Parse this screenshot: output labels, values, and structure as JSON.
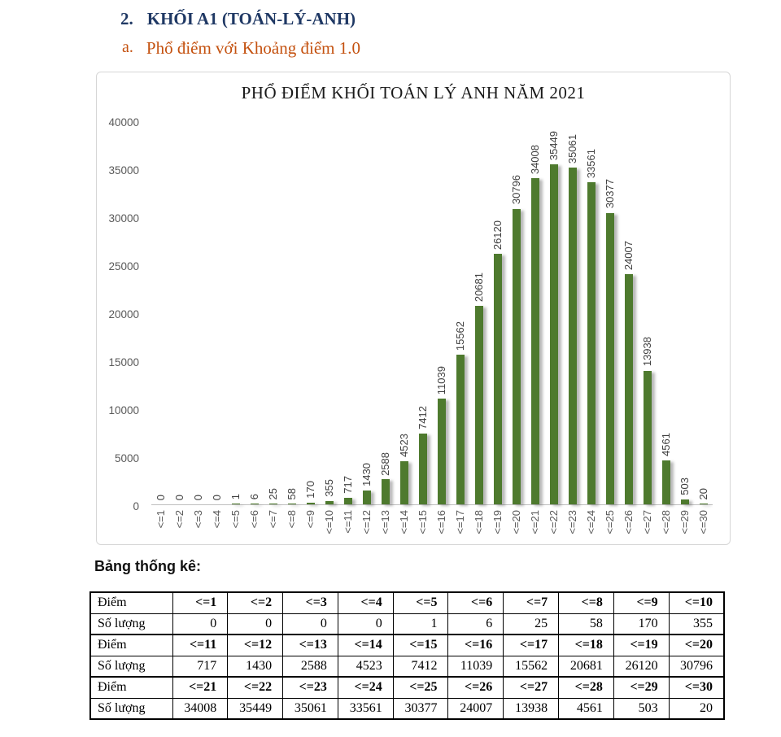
{
  "page": {
    "heading_number": "2.",
    "heading": "KHỐI A1 (TOÁN-LÝ-ANH)",
    "subheading_letter": "a.",
    "subheading": "Phổ điểm với Khoảng điểm 1.0",
    "stats_label": "Bảng thống kê:"
  },
  "colors": {
    "heading_navy": "#1f3864",
    "subheading_orange": "#c4510f",
    "bar_green": "#4e7a2e",
    "axis_text_gray": "#595959",
    "chart_border": "#d6d6d6"
  },
  "chart_data": {
    "type": "bar",
    "title": "PHỔ ĐIỂM KHỐI TOÁN LÝ ANH NĂM 2021",
    "categories": [
      "<=1",
      "<=2",
      "<=3",
      "<=4",
      "<=5",
      "<=6",
      "<=7",
      "<=8",
      "<=9",
      "<=10",
      "<=11",
      "<=12",
      "<=13",
      "<=14",
      "<=15",
      "<=16",
      "<=17",
      "<=18",
      "<=19",
      "<=20",
      "<=21",
      "<=22",
      "<=23",
      "<=24",
      "<=25",
      "<=26",
      "<=27",
      "<=28",
      "<=29",
      "<=30"
    ],
    "values": [
      0,
      0,
      0,
      0,
      1,
      6,
      25,
      58,
      170,
      355,
      717,
      1430,
      2588,
      4523,
      7412,
      11039,
      15562,
      20681,
      26120,
      30796,
      34008,
      35449,
      35061,
      33561,
      30377,
      24007,
      13938,
      4561,
      503,
      20
    ],
    "xlabel": "",
    "ylabel": "",
    "ylim": [
      0,
      40000
    ],
    "yticks": [
      0,
      5000,
      10000,
      15000,
      20000,
      25000,
      30000,
      35000,
      40000
    ],
    "grid": false,
    "legend": false,
    "bar_color": "#4e7a2e",
    "value_labels": "rotated-90-above-bars",
    "category_labels": "rotated-90-below-axis"
  },
  "table": {
    "row_labels": [
      "Điểm",
      "Số lượng"
    ],
    "blocks": [
      {
        "headers": [
          "<=1",
          "<=2",
          "<=3",
          "<=4",
          "<=5",
          "<=6",
          "<=7",
          "<=8",
          "<=9",
          "<=10"
        ],
        "values": [
          "0",
          "0",
          "0",
          "0",
          "1",
          "6",
          "25",
          "58",
          "170",
          "355"
        ]
      },
      {
        "headers": [
          "<=11",
          "<=12",
          "<=13",
          "<=14",
          "<=15",
          "<=16",
          "<=17",
          "<=18",
          "<=19",
          "<=20"
        ],
        "values": [
          "717",
          "1430",
          "2588",
          "4523",
          "7412",
          "11039",
          "15562",
          "20681",
          "26120",
          "30796"
        ]
      },
      {
        "headers": [
          "<=21",
          "<=22",
          "<=23",
          "<=24",
          "<=25",
          "<=26",
          "<=27",
          "<=28",
          "<=29",
          "<=30"
        ],
        "values": [
          "34008",
          "35449",
          "35061",
          "33561",
          "30377",
          "24007",
          "13938",
          "4561",
          "503",
          "20"
        ]
      }
    ]
  }
}
